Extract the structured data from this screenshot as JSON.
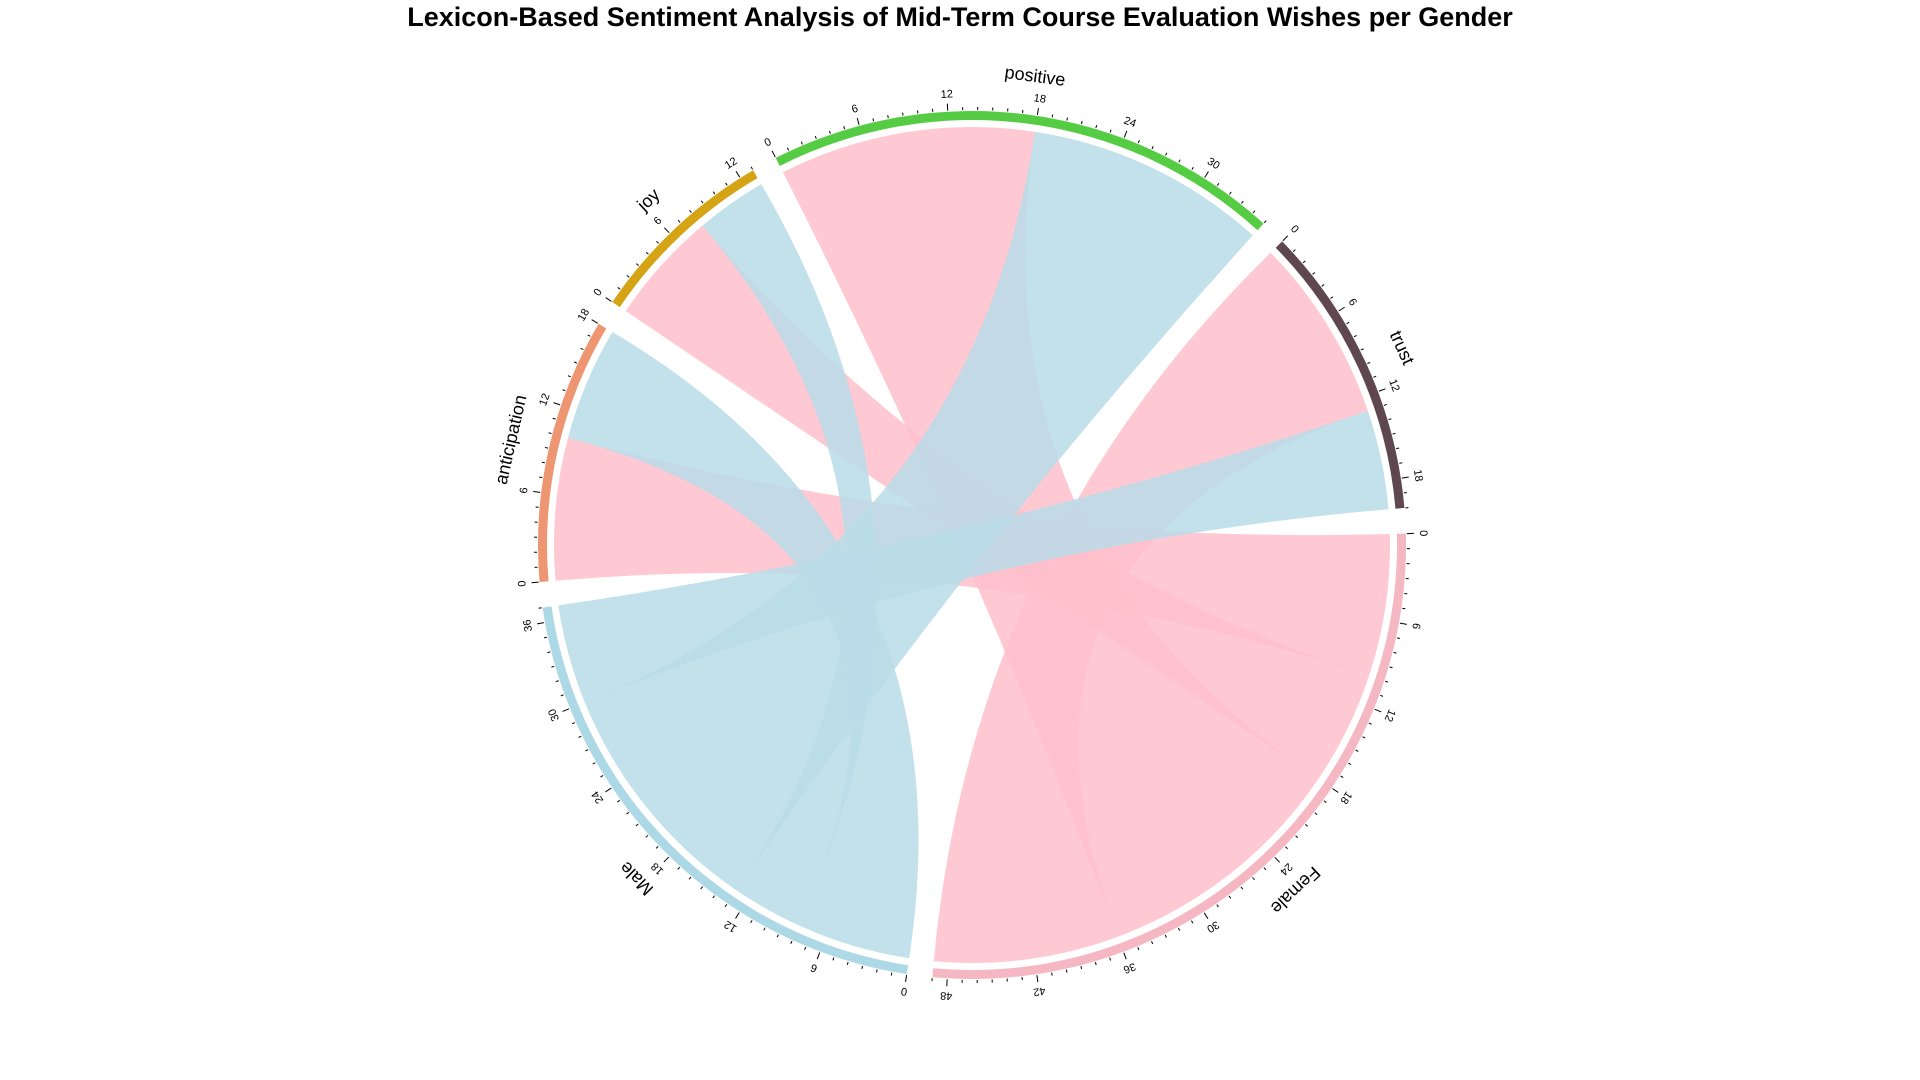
{
  "chart_data": {
    "type": "chord",
    "title": "Lexicon-Based Sentiment Analysis of Mid-Term Course Evaluation Wishes per Gender",
    "sectors": [
      {
        "name": "Female",
        "total": 49,
        "color": "#F5B7C1",
        "tick_step": 6
      },
      {
        "name": "Male",
        "total": 37,
        "color": "#ADD8E6",
        "tick_step": 6
      },
      {
        "name": "anticipation",
        "total": 18,
        "color": "#EE9572",
        "tick_step": 6
      },
      {
        "name": "joy",
        "total": 13,
        "color": "#D4A414",
        "tick_step": 6
      },
      {
        "name": "positive",
        "total": 35,
        "color": "#55CC44",
        "tick_step": 6
      },
      {
        "name": "trust",
        "total": 20,
        "color": "#5E474E",
        "tick_step": 6
      }
    ],
    "flows": [
      {
        "from": "Female",
        "to": "anticipation",
        "value": 10,
        "color": "#FFC0CB"
      },
      {
        "from": "Female",
        "to": "joy",
        "value": 8,
        "color": "#FFC0CB"
      },
      {
        "from": "Female",
        "to": "positive",
        "value": 18,
        "color": "#FFC0CB"
      },
      {
        "from": "Female",
        "to": "trust",
        "value": 13,
        "color": "#FFC0CB"
      },
      {
        "from": "Male",
        "to": "anticipation",
        "value": 8,
        "color": "#B8DCE8"
      },
      {
        "from": "Male",
        "to": "joy",
        "value": 5,
        "color": "#B8DCE8"
      },
      {
        "from": "Male",
        "to": "positive",
        "value": 17,
        "color": "#B8DCE8"
      },
      {
        "from": "Male",
        "to": "trust",
        "value": 7,
        "color": "#B8DCE8"
      }
    ]
  }
}
